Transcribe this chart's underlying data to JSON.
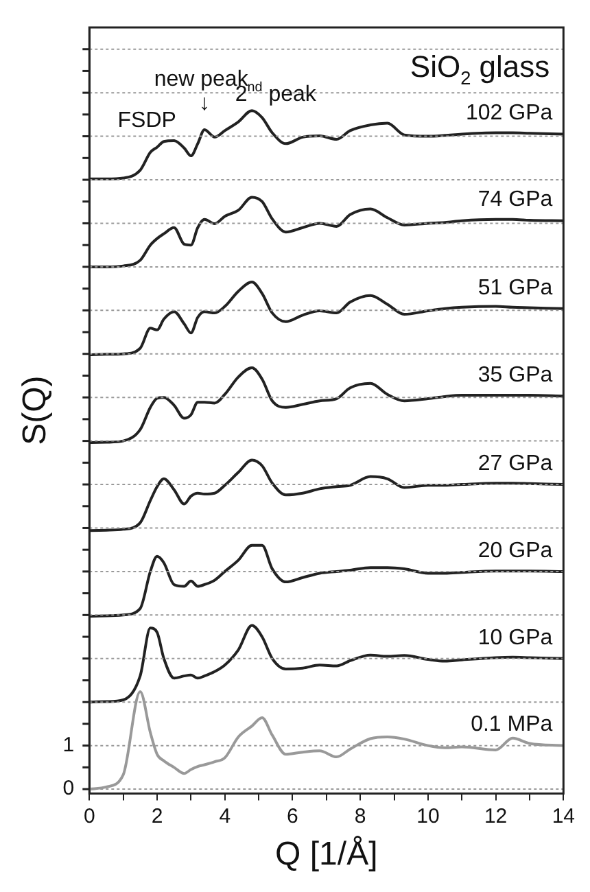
{
  "chart_data": {
    "type": "line",
    "title": "SiO$_{2}$ glass",
    "xlabel": "Q [1/Å]",
    "ylabel": "S(Q)",
    "x": [
      0,
      0.5,
      1,
      1.5,
      1.8,
      2,
      2.2,
      2.5,
      2.8,
      3,
      3.2,
      3.4,
      3.7,
      4,
      4.4,
      4.8,
      5.1,
      5.4,
      5.8,
      6.3,
      6.8,
      7.3,
      7.7,
      8.3,
      8.8,
      9.3,
      10,
      10.5,
      11,
      12,
      12.5,
      13,
      14
    ],
    "series": [
      {
        "name": "0.1 MPa",
        "color": "#999999",
        "values": [
          0,
          0.05,
          0.33,
          2.24,
          1.3,
          0.8,
          0.65,
          0.5,
          0.36,
          0.45,
          0.52,
          0.56,
          0.63,
          0.72,
          1.2,
          1.45,
          1.64,
          1.24,
          0.8,
          0.85,
          0.88,
          0.74,
          0.92,
          1.16,
          1.2,
          1.15,
          1.0,
          0.95,
          0.97,
          0.9,
          1.17,
          1.05,
          1.0
        ]
      },
      {
        "name": "10 GPa",
        "color": "#222222",
        "values": [
          2,
          2.01,
          2.05,
          2.6,
          3.7,
          3.6,
          3.0,
          2.55,
          2.6,
          2.62,
          2.55,
          2.6,
          2.7,
          2.85,
          3.2,
          3.76,
          3.5,
          3.0,
          2.76,
          2.78,
          2.85,
          2.83,
          2.95,
          3.08,
          3.05,
          3.07,
          2.98,
          2.94,
          2.97,
          3.02,
          3.03,
          3.02,
          3.0
        ]
      },
      {
        "name": "20 GPa",
        "color": "#222222",
        "values": [
          3.97,
          3.98,
          4.0,
          4.15,
          5.0,
          5.35,
          5.2,
          4.7,
          4.66,
          4.78,
          4.66,
          4.7,
          4.8,
          5.0,
          5.26,
          5.6,
          5.6,
          5.06,
          4.76,
          4.86,
          4.96,
          5.0,
          5.03,
          5.09,
          5.09,
          5.06,
          4.96,
          4.96,
          4.98,
          5.01,
          5.01,
          5.01,
          5.0
        ]
      },
      {
        "name": "27 GPa",
        "color": "#222222",
        "values": [
          5.94,
          5.95,
          5.97,
          6.12,
          6.63,
          6.95,
          7.13,
          6.88,
          6.55,
          6.73,
          6.8,
          6.78,
          6.8,
          6.98,
          7.28,
          7.56,
          7.43,
          7.03,
          6.76,
          6.8,
          6.9,
          6.95,
          6.98,
          7.18,
          7.13,
          6.93,
          6.98,
          6.98,
          7.0,
          7.03,
          7.03,
          7.02,
          7.0
        ]
      },
      {
        "name": "35 GPa",
        "color": "#222222",
        "values": [
          7.96,
          7.97,
          8.0,
          8.26,
          8.77,
          8.98,
          9.0,
          8.82,
          8.52,
          8.6,
          8.89,
          8.89,
          8.87,
          9.07,
          9.47,
          9.68,
          9.42,
          8.92,
          8.77,
          8.84,
          8.92,
          8.97,
          9.22,
          9.32,
          9.07,
          8.92,
          8.97,
          9.02,
          9.05,
          9.05,
          9.05,
          9.05,
          9.03
        ]
      },
      {
        "name": "51 GPa",
        "color": "#222222",
        "values": [
          9.98,
          9.99,
          10.0,
          10.13,
          10.59,
          10.55,
          10.8,
          10.97,
          10.69,
          10.48,
          10.84,
          10.97,
          10.94,
          11.09,
          11.44,
          11.65,
          11.39,
          10.94,
          10.74,
          10.89,
          10.99,
          10.94,
          11.19,
          11.34,
          11.14,
          10.91,
          10.99,
          11.04,
          11.07,
          11.09,
          11.07,
          11.06,
          11.04
        ]
      },
      {
        "name": "74 GPa",
        "color": "#222222",
        "values": [
          12.0,
          12.0,
          12.02,
          12.15,
          12.5,
          12.65,
          12.76,
          12.9,
          12.52,
          12.5,
          12.9,
          13.09,
          12.99,
          13.16,
          13.3,
          13.6,
          13.5,
          13.1,
          12.8,
          12.9,
          13.0,
          12.93,
          13.2,
          13.33,
          13.13,
          12.96,
          13.0,
          13.02,
          13.06,
          13.09,
          13.09,
          13.07,
          13.06
        ]
      },
      {
        "name": "102 GPa",
        "color": "#222222",
        "values": [
          14.02,
          14.02,
          14.04,
          14.22,
          14.63,
          14.75,
          14.88,
          14.9,
          14.73,
          14.55,
          14.83,
          15.15,
          14.98,
          15.13,
          15.33,
          15.59,
          15.43,
          15.08,
          14.83,
          14.98,
          15.01,
          14.93,
          15.13,
          15.26,
          15.3,
          15.03,
          15.0,
          15.02,
          15.05,
          15.08,
          15.08,
          15.07,
          15.05
        ]
      }
    ],
    "annotations": [
      "FSDP",
      "new peak",
      "↓",
      "2$^{nd}$ peak"
    ],
    "xlim": [
      0,
      14
    ],
    "xticks": [
      0,
      {
        "value": 1,
        "label": null
      },
      2,
      {
        "value": 3,
        "label": null
      },
      4,
      {
        "value": 5,
        "label": null
      },
      6,
      {
        "value": 7,
        "label": null
      },
      8,
      {
        "value": 9,
        "label": null
      },
      10,
      {
        "value": 11,
        "label": null
      },
      12,
      {
        "value": 13,
        "label": null
      },
      14
    ],
    "ylim": [
      -0.1,
      17.5
    ],
    "yticks": [
      0,
      {
        "value": 0.5,
        "label": null
      },
      1,
      {
        "value": 1.5,
        "label": null
      },
      {
        "value": 2,
        "label": null
      },
      {
        "value": 2.5,
        "label": null
      },
      {
        "value": 3,
        "label": null
      },
      {
        "value": 3.5,
        "label": null
      },
      {
        "value": 4,
        "label": null
      },
      {
        "value": 4.5,
        "label": null
      },
      {
        "value": 5,
        "label": null
      },
      {
        "value": 5.5,
        "label": null
      },
      {
        "value": 6,
        "label": null
      },
      {
        "value": 6.5,
        "label": null
      },
      {
        "value": 7,
        "label": null
      },
      {
        "value": 7.5,
        "label": null
      },
      {
        "value": 8,
        "label": null
      },
      {
        "value": 8.5,
        "label": null
      },
      {
        "value": 9,
        "label": null
      },
      {
        "value": 9.5,
        "label": null
      },
      {
        "value": 10,
        "label": null
      },
      {
        "value": 10.5,
        "label": null
      },
      {
        "value": 11,
        "label": null
      },
      {
        "value": 11.5,
        "label": null
      },
      {
        "value": 12,
        "label": null
      },
      {
        "value": 12.5,
        "label": null
      },
      {
        "value": 13,
        "label": null
      },
      {
        "value": 13.5,
        "label": null
      },
      {
        "value": 14,
        "label": null
      },
      {
        "value": 14.5,
        "label": null
      },
      {
        "value": 15,
        "label": null
      },
      {
        "value": 15.5,
        "label": null
      },
      {
        "value": 16,
        "label": null
      },
      {
        "value": 16.5,
        "label": null
      },
      {
        "value": 17,
        "label": null
      }
    ],
    "grid": "y",
    "legend": false,
    "marker": "none",
    "line_style": "solid"
  }
}
